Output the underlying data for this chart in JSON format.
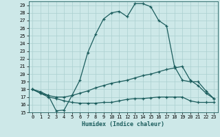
{
  "xlabel": "Humidex (Indice chaleur)",
  "ylabel": "",
  "xlim": [
    -0.5,
    23.5
  ],
  "ylim": [
    15,
    29.5
  ],
  "yticks": [
    15,
    16,
    17,
    18,
    19,
    20,
    21,
    22,
    23,
    24,
    25,
    26,
    27,
    28,
    29
  ],
  "xticks": [
    0,
    1,
    2,
    3,
    4,
    5,
    6,
    7,
    8,
    9,
    10,
    11,
    12,
    13,
    14,
    15,
    16,
    17,
    18,
    19,
    20,
    21,
    22,
    23
  ],
  "bg_color": "#cde8e8",
  "grid_color": "#aacfcf",
  "line_color": "#1a5c5c",
  "line1_x": [
    0,
    1,
    2,
    3,
    4,
    5,
    6,
    7,
    8,
    9,
    10,
    11,
    12,
    13,
    14,
    15,
    16,
    17,
    18,
    19,
    20,
    21,
    22,
    23
  ],
  "line1_y": [
    18.0,
    17.7,
    17.2,
    15.2,
    15.3,
    17.2,
    19.2,
    22.8,
    25.2,
    27.2,
    28.0,
    28.2,
    27.5,
    29.2,
    29.2,
    28.8,
    27.0,
    26.3,
    21.0,
    19.2,
    19.0,
    19.0,
    17.8,
    16.8
  ],
  "line2_x": [
    0,
    1,
    2,
    3,
    4,
    5,
    6,
    7,
    8,
    9,
    10,
    11,
    12,
    13,
    14,
    15,
    16,
    17,
    18,
    19,
    20,
    21,
    22,
    23
  ],
  "line2_y": [
    18.0,
    17.5,
    17.2,
    17.0,
    17.0,
    17.2,
    17.5,
    17.8,
    18.2,
    18.5,
    18.8,
    19.0,
    19.2,
    19.5,
    19.8,
    20.0,
    20.3,
    20.6,
    20.8,
    21.0,
    19.2,
    18.5,
    17.5,
    16.8
  ],
  "line3_x": [
    0,
    1,
    2,
    3,
    4,
    5,
    6,
    7,
    8,
    9,
    10,
    11,
    12,
    13,
    14,
    15,
    16,
    17,
    18,
    19,
    20,
    21,
    22,
    23
  ],
  "line3_y": [
    18.0,
    17.5,
    17.0,
    16.8,
    16.5,
    16.3,
    16.2,
    16.2,
    16.2,
    16.3,
    16.3,
    16.5,
    16.7,
    16.8,
    16.8,
    16.9,
    17.0,
    17.0,
    17.0,
    17.0,
    16.5,
    16.3,
    16.3,
    16.3
  ]
}
